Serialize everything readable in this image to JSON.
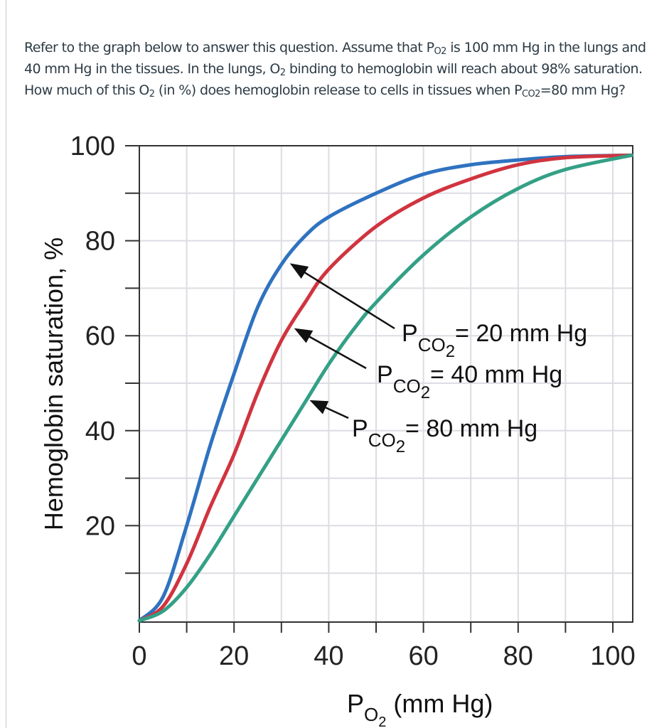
{
  "question": {
    "segments": [
      {
        "t": "Refer to the graph below to answer this question. Assume that P"
      },
      {
        "t": "O2",
        "sub": true
      },
      {
        "t": " is 100 mm Hg in the lungs and 40 mm Hg in the tissues. In the lungs, O"
      },
      {
        "t": "2",
        "sub": true
      },
      {
        "t": " binding to hemoglobin will reach about 98% saturation. How much of this O"
      },
      {
        "t": "2",
        "sub": true
      },
      {
        "t": " (in %) does hemoglobin release to cells in tissues when P"
      },
      {
        "t": "CO2",
        "sub": true
      },
      {
        "t": "=80 mm Hg?"
      }
    ]
  },
  "chart_data": {
    "type": "line",
    "ylabel": "Hemoglobin saturation, %",
    "xlabel": {
      "main": "P",
      "sub": "O",
      "subsub": "2",
      "rest": " (mm Hg)"
    },
    "xlim": [
      0,
      104
    ],
    "ylim": [
      0,
      100
    ],
    "xticks": [
      "0",
      "20",
      "40",
      "60",
      "80",
      "100"
    ],
    "yticks": [
      "20",
      "40",
      "60",
      "80",
      "100"
    ],
    "grid": true,
    "series": [
      {
        "name": "= 20 mm Hg",
        "label_main": "P",
        "label_sub": "CO",
        "label_subsub": "2",
        "color": "#2f72c0",
        "x": [
          0,
          5,
          10,
          15,
          20,
          25,
          30,
          35,
          40,
          50,
          60,
          70,
          80,
          90,
          104
        ],
        "y": [
          0,
          5,
          20,
          37,
          52,
          66,
          75,
          81,
          85,
          90,
          94,
          96,
          97,
          97.7,
          98
        ]
      },
      {
        "name": "= 40 mm Hg",
        "label_main": "P",
        "label_sub": "CO",
        "label_subsub": "2",
        "color": "#d0343f",
        "x": [
          0,
          5,
          10,
          15,
          20,
          25,
          30,
          35,
          40,
          50,
          60,
          70,
          80,
          90,
          104
        ],
        "y": [
          0,
          3,
          12,
          24,
          35,
          48,
          59,
          67,
          74,
          83,
          89,
          93,
          96,
          97.5,
          98
        ]
      },
      {
        "name": "= 80 mm Hg",
        "label_main": "P",
        "label_sub": "CO",
        "label_subsub": "2",
        "color": "#34a086",
        "x": [
          0,
          5,
          10,
          15,
          20,
          25,
          30,
          35,
          40,
          45,
          50,
          60,
          70,
          80,
          90,
          104
        ],
        "y": [
          0,
          2,
          7,
          14,
          22,
          30,
          38,
          46,
          54,
          61,
          67,
          77,
          85,
          91,
          95,
          98
        ]
      }
    ]
  }
}
